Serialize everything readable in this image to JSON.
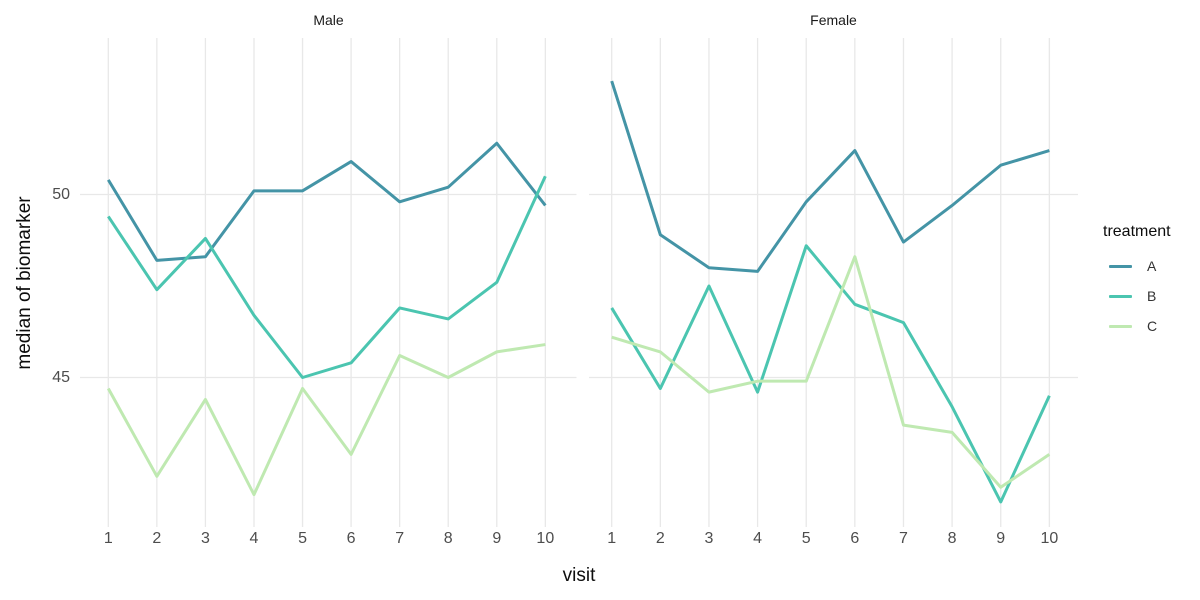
{
  "chart_data": {
    "type": "line",
    "x": [
      1,
      2,
      3,
      4,
      5,
      6,
      7,
      8,
      9,
      10
    ],
    "xlabel": "visit",
    "ylabel": "median of biomarker",
    "y_tick_values": [
      50,
      45
    ],
    "y_axis_range_approx": [
      40.9,
      54.3
    ],
    "grid": "major gridlines only, light gray, no axis lines or tick marks",
    "facet_labels": [
      "Male",
      "Female"
    ],
    "facets": [
      {
        "name": "Male",
        "series": [
          {
            "name": "A",
            "color": "#4494a6",
            "values": [
              50.4,
              48.2,
              48.3,
              50.1,
              50.1,
              50.9,
              49.8,
              50.2,
              51.4,
              49.7
            ]
          },
          {
            "name": "B",
            "color": "#4bc5b0",
            "values": [
              49.4,
              47.4,
              48.8,
              46.7,
              45.0,
              45.4,
              46.9,
              46.6,
              47.6,
              50.5
            ]
          },
          {
            "name": "C",
            "color": "#bfe9b1",
            "values": [
              44.7,
              42.3,
              44.4,
              41.8,
              44.7,
              42.9,
              45.6,
              45.0,
              45.7,
              45.9
            ]
          }
        ]
      },
      {
        "name": "Female",
        "series": [
          {
            "name": "A",
            "color": "#4494a6",
            "values": [
              53.1,
              48.9,
              48.0,
              47.9,
              49.8,
              51.2,
              48.7,
              49.7,
              50.8,
              51.2
            ]
          },
          {
            "name": "B",
            "color": "#4bc5b0",
            "values": [
              46.9,
              44.7,
              47.5,
              44.6,
              48.6,
              47.0,
              46.5,
              44.2,
              41.6,
              44.5
            ]
          },
          {
            "name": "C",
            "color": "#bfe9b1",
            "values": [
              46.1,
              45.7,
              44.6,
              44.9,
              44.9,
              48.3,
              43.7,
              43.5,
              42.0,
              42.9
            ]
          }
        ]
      }
    ],
    "legend": {
      "title": "treatment",
      "position": "right",
      "items": [
        {
          "label": "A",
          "color": "#4494a6"
        },
        {
          "label": "B",
          "color": "#4bc5b0"
        },
        {
          "label": "C",
          "color": "#bfe9b1"
        }
      ]
    },
    "colors": {
      "background": "#ffffff",
      "gridline": "#e8e8e8",
      "tick_text": "#4d4d4d",
      "axis_title_text": "#0d0d0d",
      "strip_text": "#1a1a1a"
    }
  }
}
